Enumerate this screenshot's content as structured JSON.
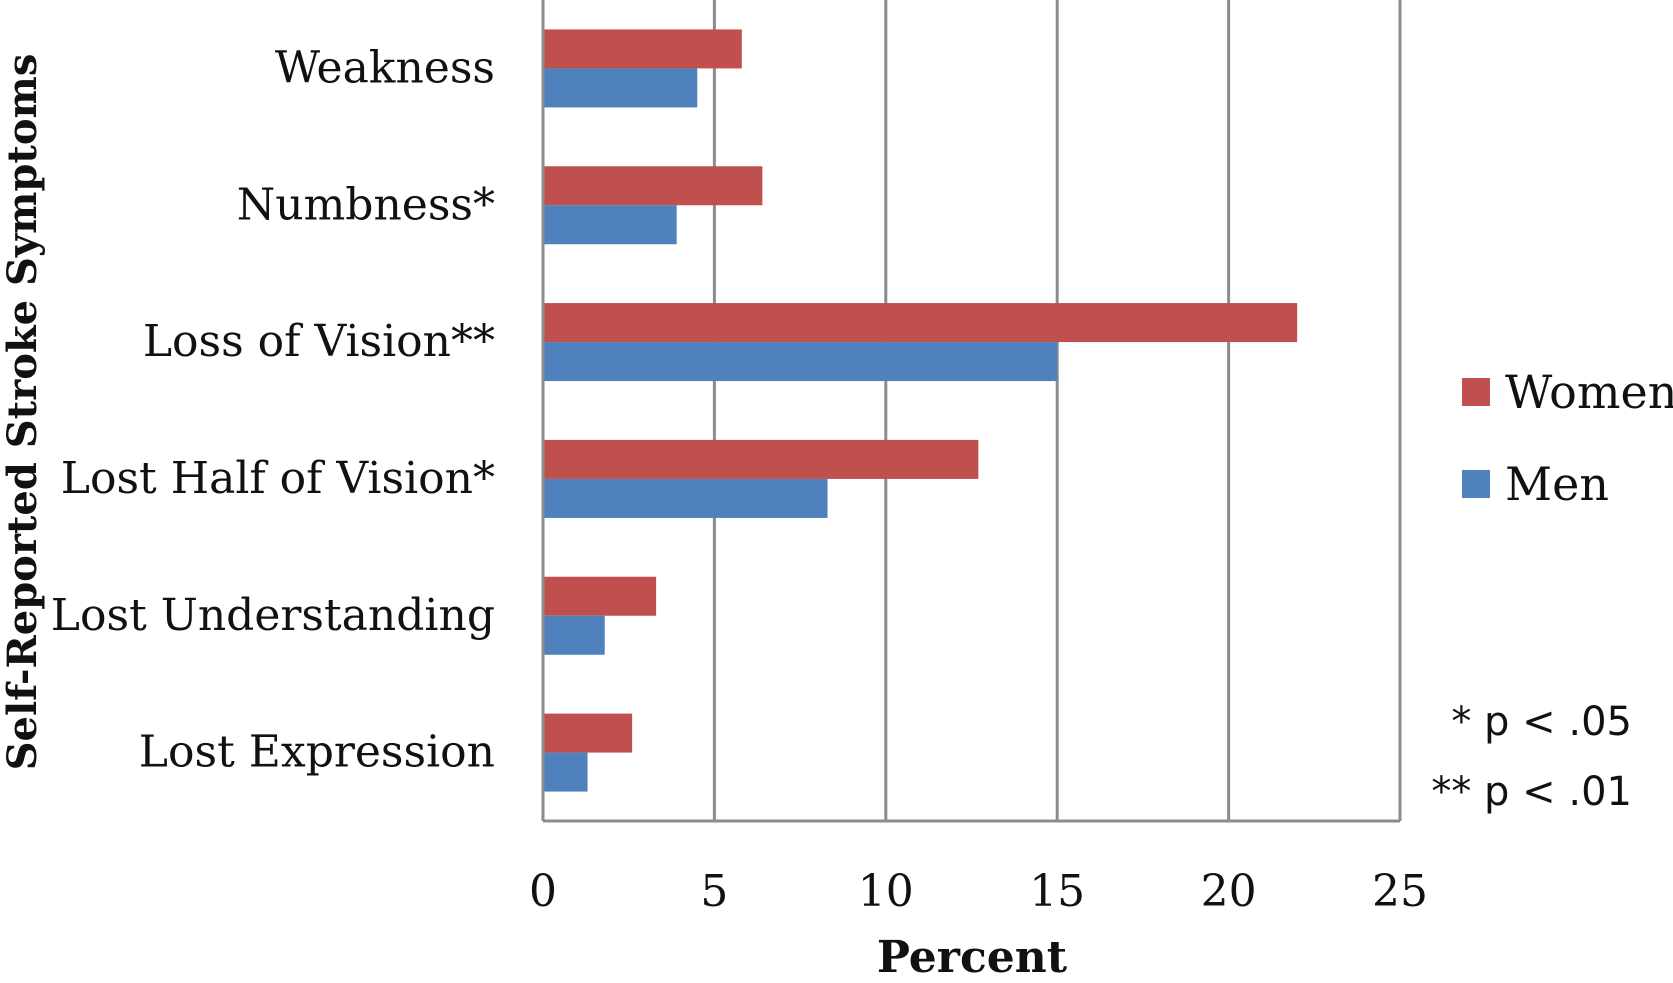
{
  "chart_data": {
    "type": "bar",
    "orientation": "horizontal",
    "categories": [
      "Weakness",
      "Numbness*",
      "Loss of Vision**",
      "Lost Half of Vision*",
      "Lost Understanding",
      "Lost Expression"
    ],
    "series": [
      {
        "name": "Women",
        "color": "#C0504D",
        "values": [
          5.8,
          6.4,
          22.0,
          12.7,
          3.3,
          2.6
        ]
      },
      {
        "name": "Men",
        "color": "#4F81BD",
        "values": [
          4.5,
          3.9,
          15.0,
          8.3,
          1.8,
          1.3
        ]
      }
    ],
    "xlabel": "Percent",
    "ylabel": "Self-Reported Stroke Symptoms",
    "xlim": [
      0,
      25
    ],
    "xticks": [
      0,
      5,
      10,
      15,
      20,
      25
    ],
    "grid": true,
    "legend_position": "right",
    "notes": [
      "* p < .05",
      "** p < .01"
    ]
  }
}
